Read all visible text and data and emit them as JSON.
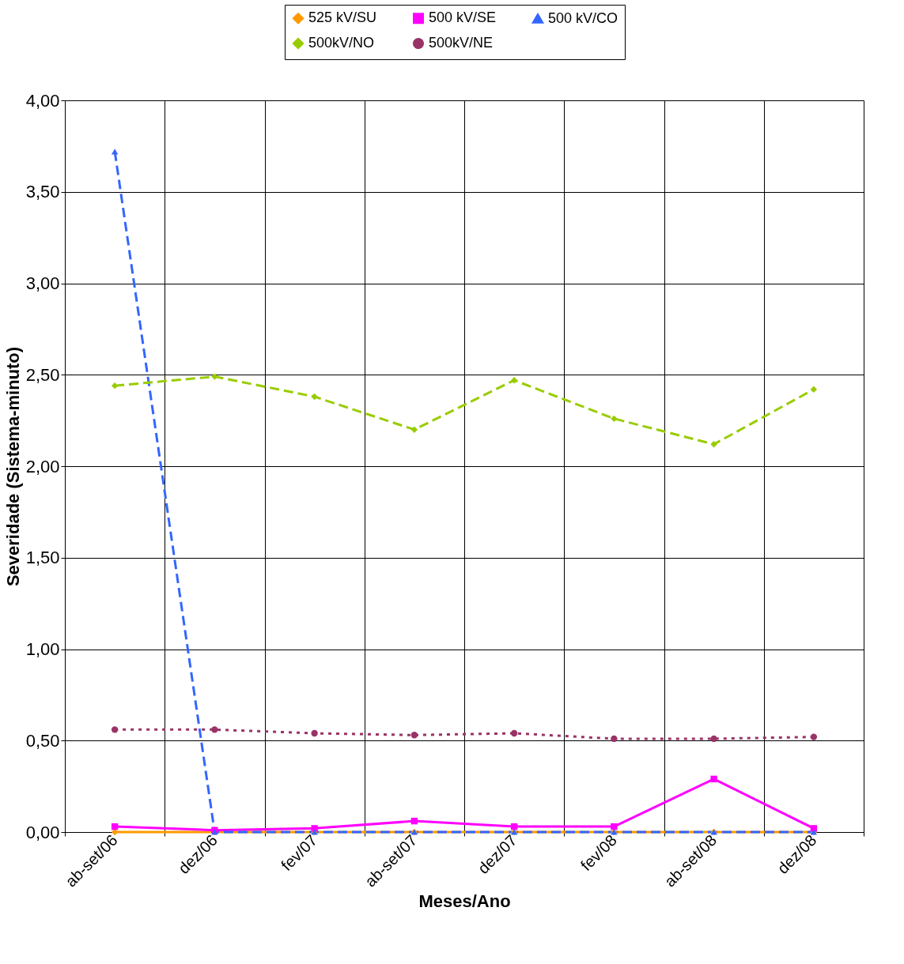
{
  "chart_data": {
    "type": "line",
    "xlabel": "Meses/Ano",
    "ylabel": "Severidade (Sistema-minuto)",
    "categories": [
      "ab-set/06",
      "dez/06",
      "fev/07",
      "ab-set/07",
      "dez/07",
      "fev/08",
      "ab-set/08",
      "dez/08"
    ],
    "series": [
      {
        "name": "525 kV/SU",
        "color": "#ff9900",
        "marker": "diamond",
        "line_style": "solid",
        "values": [
          0,
          0,
          0,
          0,
          0,
          0,
          0,
          0
        ]
      },
      {
        "name": "500 kV/SE",
        "color": "#ff00ff",
        "marker": "square",
        "line_style": "solid",
        "values": [
          0.03,
          0.01,
          0.02,
          0.06,
          0.03,
          0.03,
          0.29,
          0.02
        ]
      },
      {
        "name": "500 kV/CO",
        "color": "#3366ff",
        "marker": "triangle",
        "line_style": "dashed",
        "values": [
          3.72,
          0,
          0,
          0,
          0,
          0,
          0,
          0
        ]
      },
      {
        "name": "500kV/NO",
        "color": "#99cc00",
        "marker": "diamond",
        "line_style": "dashed",
        "values": [
          2.44,
          2.49,
          2.38,
          2.2,
          2.47,
          2.26,
          2.12,
          2.42
        ]
      },
      {
        "name": "500kV/NE",
        "color": "#993366",
        "marker": "circle",
        "line_style": "dotted",
        "values": [
          0.56,
          0.56,
          0.54,
          0.53,
          0.54,
          0.51,
          0.51,
          0.52
        ]
      }
    ],
    "ylim": [
      0,
      4
    ],
    "yticks": [
      {
        "value": 0,
        "label": "0,00"
      },
      {
        "value": 0.5,
        "label": "0,50"
      },
      {
        "value": 1,
        "label": "1,00"
      },
      {
        "value": 1.5,
        "label": "1,50"
      },
      {
        "value": 2,
        "label": "2,00"
      },
      {
        "value": 2.5,
        "label": "2,50"
      },
      {
        "value": 3,
        "label": "3,00"
      },
      {
        "value": 3.5,
        "label": "3,50"
      },
      {
        "value": 4,
        "label": "4,00"
      }
    ],
    "grid": true,
    "legend": "top"
  }
}
